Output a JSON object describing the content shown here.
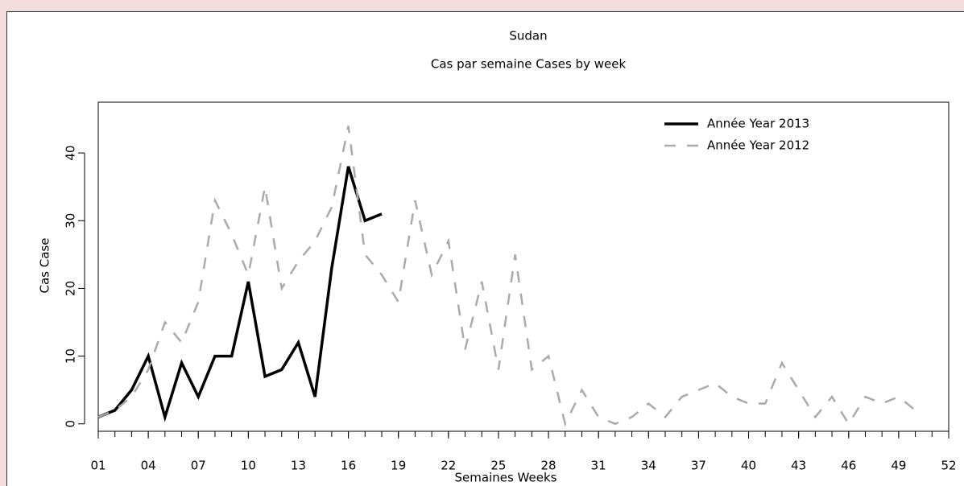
{
  "chart_data": {
    "type": "line",
    "title": "Sudan",
    "subtitle": "Cas par semaine Cases by week",
    "x_label": "Semaines Weeks",
    "y_label": "Cas Case",
    "xlim": [
      1,
      52
    ],
    "ylim": [
      -1.1,
      47.5
    ],
    "xticks": [
      {
        "value": 1,
        "label": "01"
      },
      {
        "value": 4,
        "label": "04"
      },
      {
        "value": 7,
        "label": "07"
      },
      10,
      13,
      16,
      19,
      22,
      25,
      28,
      31,
      34,
      37,
      40,
      43,
      46,
      49,
      52
    ],
    "yticks": [
      0,
      10,
      20,
      30,
      40
    ],
    "legend": "top-right",
    "series": [
      {
        "name": "Année Year 2013",
        "color": "#000000",
        "style": "solid",
        "x": [
          1,
          2,
          3,
          4,
          5,
          6,
          7,
          8,
          9,
          10,
          11,
          12,
          13,
          14,
          15,
          16,
          17,
          18
        ],
        "values": [
          1,
          2,
          5,
          10,
          1,
          9,
          4,
          10,
          10,
          21,
          7,
          8,
          12,
          4,
          23,
          38,
          30,
          31
        ]
      },
      {
        "name": "Année Year 2012",
        "color": "#aaaaaa",
        "style": "dashed",
        "x": [
          1,
          2,
          3,
          4,
          5,
          6,
          7,
          8,
          9,
          10,
          11,
          12,
          13,
          14,
          15,
          16,
          17,
          18,
          19,
          20,
          21,
          22,
          23,
          24,
          25,
          26,
          27,
          28,
          29,
          30,
          31,
          32,
          33,
          34,
          35,
          36,
          37,
          38,
          39,
          40,
          41,
          42,
          43,
          44,
          45,
          46,
          47,
          48,
          49,
          50
        ],
        "values": [
          1,
          2,
          4,
          8,
          15,
          12,
          18,
          33,
          28,
          22,
          35,
          20,
          24,
          27,
          32,
          44,
          25,
          22,
          18,
          33,
          22,
          27,
          11,
          21,
          8,
          25,
          8,
          10,
          0,
          5,
          1,
          0,
          1,
          3,
          1,
          4,
          5,
          6,
          4,
          3,
          3,
          9,
          5,
          1,
          4,
          0,
          4,
          3,
          4,
          2
        ]
      }
    ]
  }
}
